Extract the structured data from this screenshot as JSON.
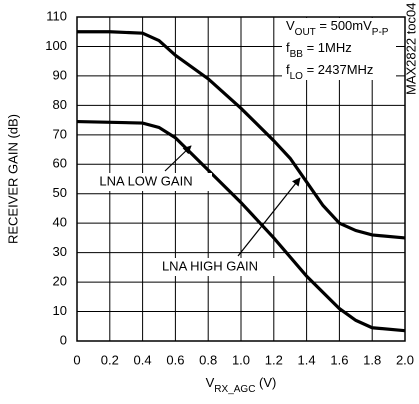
{
  "chart_data": {
    "type": "line",
    "y_label": "RECEIVER GAIN (dB)",
    "x_label": [
      {
        "text": "V"
      },
      {
        "text": "RX_AGC",
        "sub": true
      },
      {
        "text": " (V)"
      }
    ],
    "annotations": [
      [
        {
          "text": "V"
        },
        {
          "text": "OUT",
          "sub": true
        },
        {
          "text": " = 500mV"
        },
        {
          "text": "P-P",
          "sub": true
        }
      ],
      [
        {
          "text": "f"
        },
        {
          "text": "BB",
          "sub": true
        },
        {
          "text": " = 1MHz"
        }
      ],
      [
        {
          "text": "f"
        },
        {
          "text": "LO",
          "sub": true
        },
        {
          "text": " = 2437MHz"
        }
      ]
    ],
    "figure_id": "MAX2822 toc04",
    "xlim": [
      0,
      2
    ],
    "ylim": [
      0,
      110
    ],
    "xticks": [
      0,
      0.2,
      0.4,
      0.6,
      0.8,
      {
        "value": 1,
        "label": "1.0"
      },
      1.2,
      1.4,
      1.6,
      1.8,
      {
        "value": 2,
        "label": "2.0"
      }
    ],
    "yticks": [
      0,
      10,
      20,
      30,
      40,
      50,
      60,
      70,
      80,
      90,
      100,
      110
    ],
    "grid": true,
    "series": [
      {
        "name": "LNA HIGH GAIN",
        "color": "#000000",
        "x": [
          0,
          0.2,
          0.4,
          0.5,
          0.6,
          0.8,
          1.0,
          1.2,
          1.3,
          1.4,
          1.5,
          1.6,
          1.7,
          1.8,
          2.0
        ],
        "values": [
          105,
          105,
          104.5,
          102,
          97,
          89,
          79,
          68,
          62,
          54,
          46,
          40,
          37.5,
          36,
          35
        ]
      },
      {
        "name": "LNA LOW GAIN",
        "color": "#000000",
        "x": [
          0,
          0.4,
          0.5,
          0.6,
          0.8,
          1.0,
          1.2,
          1.4,
          1.6,
          1.7,
          1.8,
          2.0
        ],
        "values": [
          74.5,
          74,
          72.5,
          69,
          58,
          47,
          35,
          22,
          11,
          7,
          4.5,
          3.5
        ]
      }
    ]
  }
}
